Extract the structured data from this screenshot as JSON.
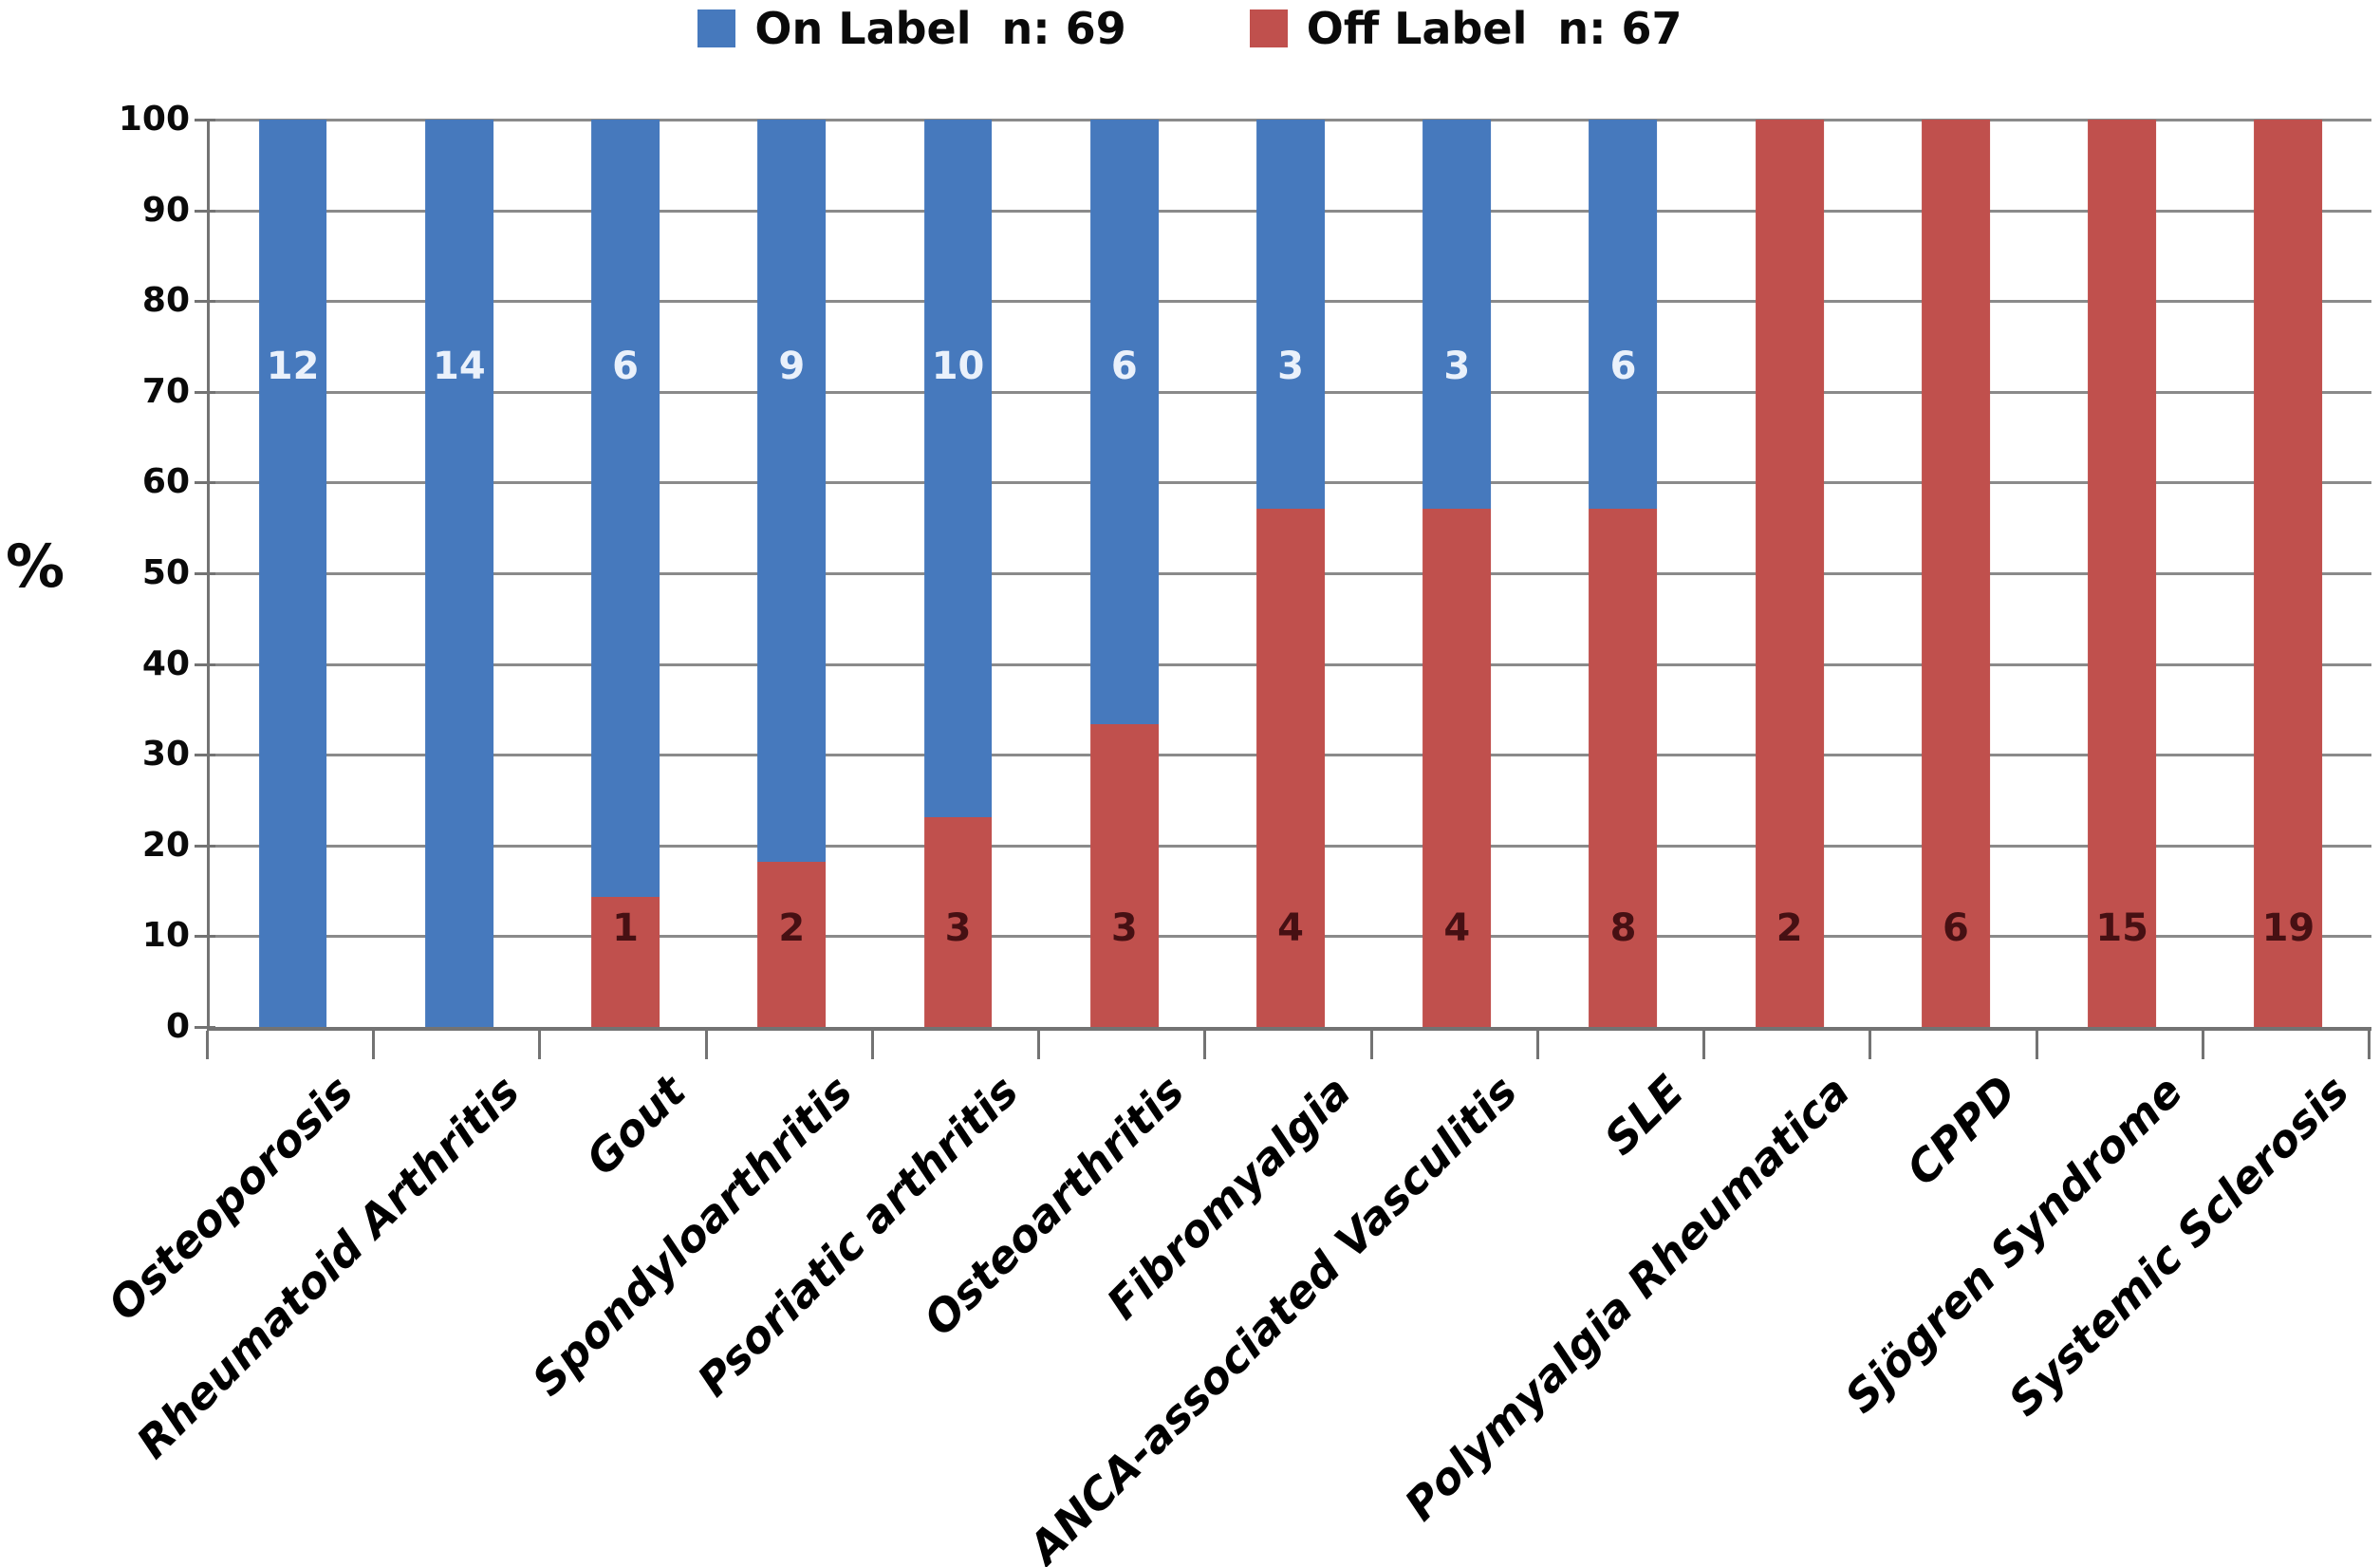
{
  "chart_data": {
    "type": "bar",
    "stacked": true,
    "percent_scale": true,
    "title": "",
    "xlabel": "",
    "ylabel": "%",
    "ylim": [
      0,
      100
    ],
    "yticks": [
      0,
      10,
      20,
      30,
      40,
      50,
      60,
      70,
      80,
      90,
      100
    ],
    "grid": true,
    "legend_position": "top-center",
    "legend": [
      {
        "label": "On Label  n: 69",
        "color": "#4679BD"
      },
      {
        "label": "Off Label  n: 67",
        "color": "#C0504D"
      }
    ],
    "categories": [
      "Osteoporosis",
      "Rheumatoid Arthritis",
      "Gout",
      "Spondyloarthritis",
      "Psoriatic arthritis",
      "Osteoarthritis",
      "Fibromyalgia",
      "ANCA-associated Vasculitis",
      "SLE",
      "Polymyalgia Rheumatica",
      "CPPD",
      "Sjögren Syndrome",
      "Systemic Sclerosis"
    ],
    "series": [
      {
        "name": "On Label",
        "n": 69,
        "color": "#4679BD",
        "label_color": "#eaf1fb",
        "counts": [
          12,
          14,
          6,
          9,
          10,
          6,
          3,
          3,
          6,
          0,
          0,
          0,
          0
        ],
        "percents": [
          100,
          100,
          85.71,
          81.82,
          76.92,
          66.67,
          42.86,
          42.86,
          42.86,
          0,
          0,
          0,
          0
        ]
      },
      {
        "name": "Off Label",
        "n": 67,
        "color": "#C0504D",
        "label_color": "#461013",
        "counts": [
          0,
          0,
          1,
          2,
          3,
          3,
          4,
          4,
          8,
          2,
          6,
          15,
          19
        ],
        "percents": [
          0,
          0,
          14.29,
          18.18,
          23.08,
          33.33,
          57.14,
          57.14,
          57.14,
          100,
          100,
          100,
          100
        ]
      }
    ],
    "axis_color": "#737373",
    "gridline_color": "#8a8a8a"
  }
}
